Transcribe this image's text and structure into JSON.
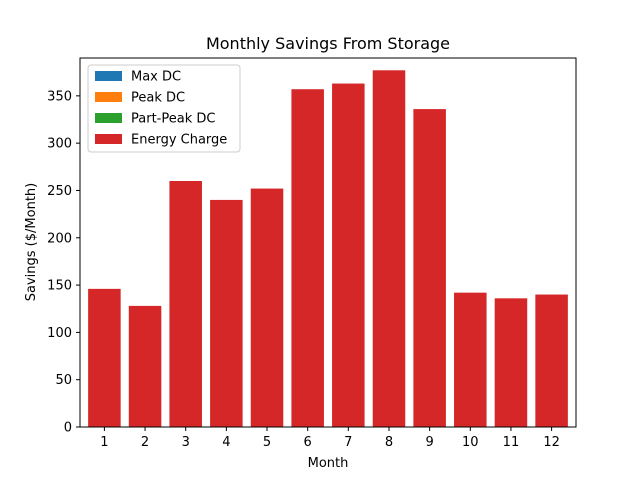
{
  "chart_data": {
    "type": "bar",
    "title": "Monthly Savings From Storage",
    "xlabel": "Month",
    "ylabel": "Savings ($/Month)",
    "categories": [
      "1",
      "2",
      "3",
      "4",
      "5",
      "6",
      "7",
      "8",
      "9",
      "10",
      "11",
      "12"
    ],
    "ylim": [
      0,
      390
    ],
    "yticks": [
      0,
      50,
      100,
      150,
      200,
      250,
      300,
      350
    ],
    "stacked": true,
    "series": [
      {
        "name": "Max DC",
        "color": "#1f77b4",
        "values": [
          0,
          0,
          0,
          0,
          0,
          0,
          0,
          0,
          0,
          0,
          0,
          0
        ]
      },
      {
        "name": "Peak DC",
        "color": "#ff7f0e",
        "values": [
          0,
          0,
          0,
          0,
          0,
          0,
          0,
          0,
          0,
          0,
          0,
          0
        ]
      },
      {
        "name": "Part-Peak DC",
        "color": "#2ca02c",
        "values": [
          0,
          0,
          0,
          0,
          0,
          0,
          0,
          0,
          0,
          0,
          0,
          0
        ]
      },
      {
        "name": "Energy Charge",
        "color": "#d62728",
        "values": [
          146,
          128,
          260,
          240,
          252,
          357,
          363,
          377,
          336,
          142,
          136,
          140
        ]
      }
    ],
    "legend_position": "top-left",
    "grid": false
  }
}
